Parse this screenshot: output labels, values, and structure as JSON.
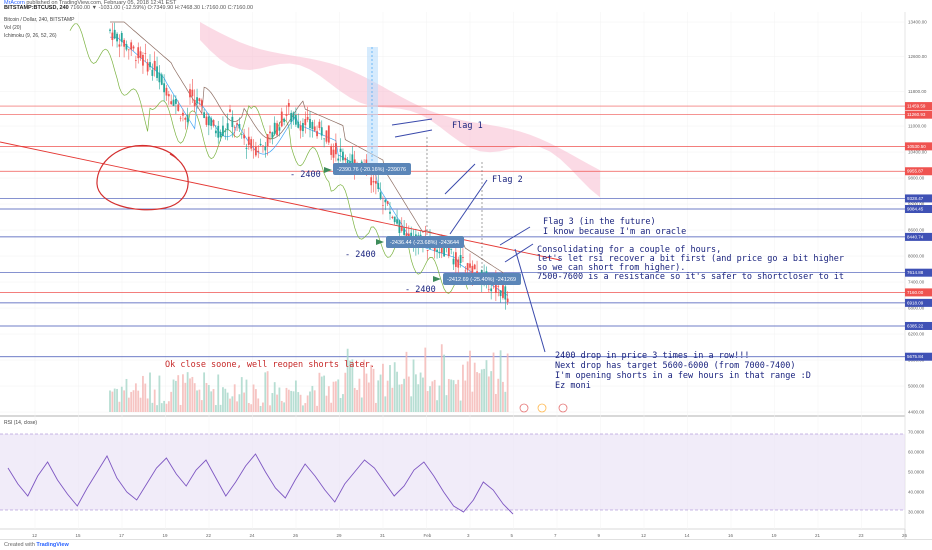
{
  "header": {
    "author": "MrAcorn",
    "publish_line": "published on TradingView.com, February 05, 2018 12:41 EST",
    "symbol_line": "BITSTAMP:BTCUSD, 240",
    "ohlc": "7160.00 ▼ -1031.00 (-12.59%) O:7349.90 H:7468.30 L:7160.00 C:7160.00"
  },
  "legend": {
    "title": "Bitcoin / Dollar, 240, BITSTAMP",
    "vol": "Vol (20)",
    "ichimoku": "Ichimoku (9, 26, 52, 26)",
    "rsi": "RSI (14, close)"
  },
  "annotations": {
    "flag1": "Flag 1",
    "flag2": "Flag 2",
    "flag3_line1": "Flag 3 (in the future)",
    "flag3_line2": "I know because I'm an oracle",
    "consolidating": [
      "Consolidating for a couple of hours,",
      "let's let rsi recover a bit first (and price go a bit higher",
      "so we can short from higher).",
      "7500-7600 is a resistance so it's safer to shortcloser to it"
    ],
    "drop_note": [
      "2400 drop in price 3 times in a row!!!",
      "Next drop has target 5600-6000 (from 7000-7400)",
      "I'm opening shorts in a few hours in that range :D",
      "Ez moni"
    ],
    "close_note": "Ok close soone, well reopen shorts later.",
    "drop1": "- 2400",
    "drop2": "- 2400",
    "drop3": "- 2400",
    "measure1": "-2390.76 (-20.16%) -239076",
    "measure2": "-2436.44 (-23.68%) -243644",
    "measure3": "-2412.69 (-25.40%) -241269"
  },
  "chart_data": {
    "type": "candlestick",
    "price_axis": {
      "ticks": [
        "13400.00",
        "12600.00",
        "11800.00",
        "11000.00",
        "10400.00",
        "9800.00",
        "9200.00",
        "8600.00",
        "8000.00",
        "7400.00",
        "6800.00",
        "6200.00",
        "5600.00",
        "5000.00",
        "4400.00"
      ],
      "tags": [
        {
          "label": "11459.59",
          "color": "#ef5350"
        },
        {
          "label": "11260.93",
          "color": "#ef5350"
        },
        {
          "label": "10530.50",
          "color": "#ef5350"
        },
        {
          "label": "9955.87",
          "color": "#ef5350"
        },
        {
          "label": "9328.47",
          "color": "#3f51b5"
        },
        {
          "label": "9084.45",
          "color": "#3f51b5"
        },
        {
          "label": "8440.74",
          "color": "#3f51b5"
        },
        {
          "label": "7614.88",
          "color": "#3f51b5"
        },
        {
          "label": "7160.00",
          "color": "#ef5350"
        },
        {
          "label": "6918.09",
          "color": "#3f51b5"
        },
        {
          "label": "6385.22",
          "color": "#3f51b5"
        },
        {
          "label": "5675.84",
          "color": "#3f51b5"
        }
      ]
    },
    "rsi_axis": {
      "ticks": [
        "70.0000",
        "60.0000",
        "50.0000",
        "40.0000",
        "30.0000"
      ]
    },
    "time_axis": {
      "ticks": [
        "12",
        "15",
        "17",
        "19",
        "22",
        "24",
        "26",
        "29",
        "31",
        "Feb",
        "3",
        "5",
        "7",
        "9",
        "12",
        "14",
        "16",
        "19",
        "21",
        "23",
        "26"
      ]
    },
    "rsi_values": [
      52,
      44,
      38,
      48,
      55,
      46,
      39,
      33,
      42,
      50,
      58,
      47,
      40,
      36,
      44,
      52,
      57,
      49,
      43,
      51,
      56,
      47,
      38,
      45,
      53,
      59,
      50,
      42,
      37,
      46,
      54,
      48,
      41,
      35,
      44,
      50,
      56,
      52,
      45,
      38,
      43,
      51,
      55,
      48,
      40,
      33,
      30,
      36,
      45,
      41,
      34,
      29
    ]
  },
  "footer": {
    "created": "Created with",
    "brand": "TradingView"
  }
}
